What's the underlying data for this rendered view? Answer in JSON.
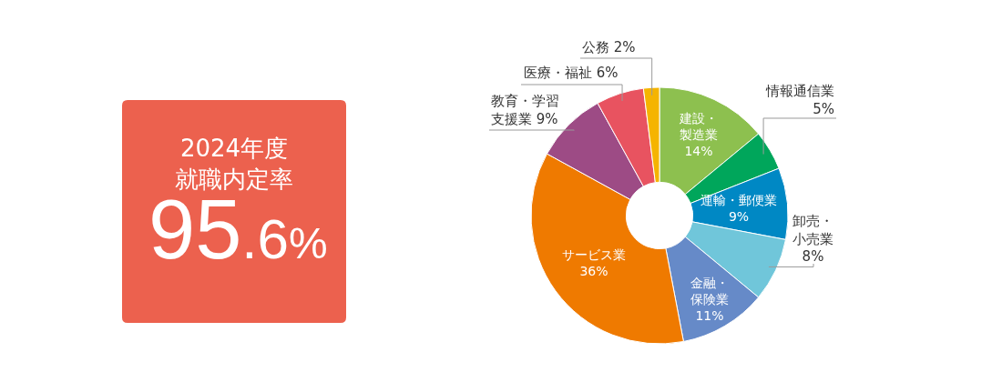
{
  "chart_data": [
    {
      "type": "other",
      "title": "2024年度就職内定率",
      "annotations": [
        "95.6%"
      ]
    },
    {
      "type": "donut",
      "categories": [
        "建設・製造業",
        "情報通信業",
        "運輸・郵便業",
        "卸売・小売業",
        "金融・保険業",
        "サービス業",
        "教育・学習支援業",
        "医療・福祉",
        "公務"
      ],
      "values": [
        14,
        5,
        9,
        8,
        11,
        36,
        9,
        6,
        2
      ],
      "colors": [
        "#8dc04f",
        "#00a65b",
        "#0088c4",
        "#70c6da",
        "#668ac8",
        "#ef7a00",
        "#9d4b85",
        "#e85360",
        "#f5b400"
      ],
      "value_labels": [
        "14%",
        "5%",
        "9%",
        "8%",
        "11%",
        "36%",
        "9%",
        "6%",
        "2%"
      ]
    }
  ]
}
